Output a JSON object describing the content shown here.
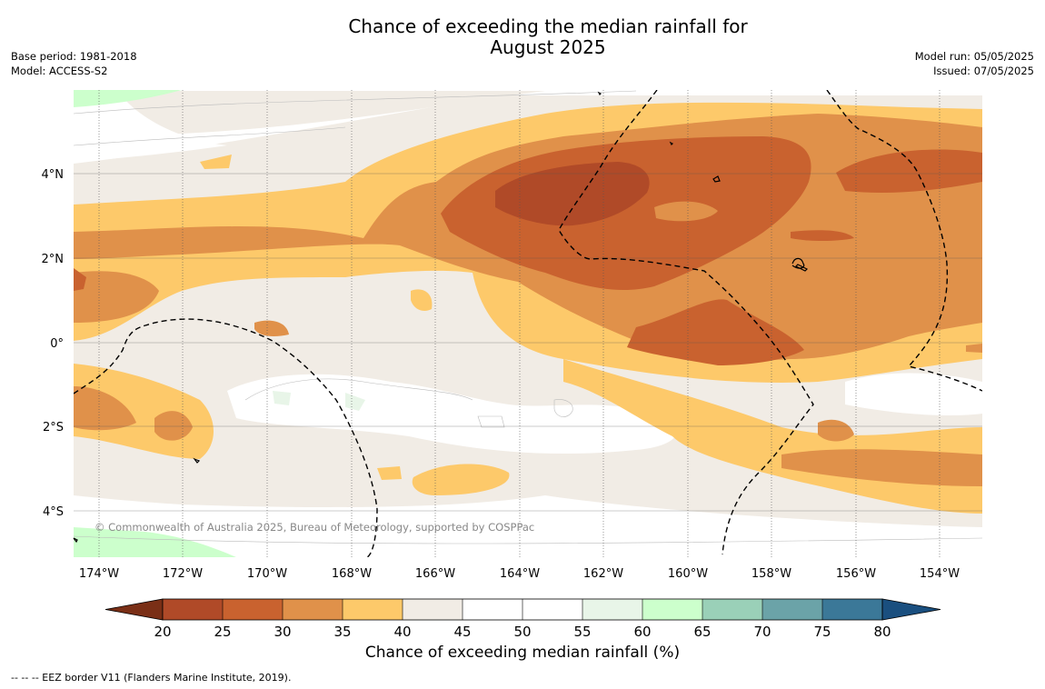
{
  "title_line1": "Chance of exceeding the median rainfall for",
  "title_line2": "August 2025",
  "meta_left": [
    "Base period: 1981-2018",
    "Model: ACCESS-S2"
  ],
  "meta_right": [
    "Model run: 05/05/2025",
    "Issued: 07/05/2025"
  ],
  "lon_labels": [
    "174°W",
    "172°W",
    "170°W",
    "168°W",
    "166°W",
    "164°W",
    "162°W",
    "160°W",
    "158°W",
    "156°W",
    "154°W"
  ],
  "lat_labels": [
    "4°N",
    "2°N",
    "0°",
    "2°S",
    "4°S"
  ],
  "copyright": "© Commonwealth of Australia 2025, Bureau of Meteorology, supported by COSPPac",
  "colorbar": {
    "ticks": [
      "20",
      "25",
      "30",
      "35",
      "40",
      "45",
      "50",
      "55",
      "60",
      "65",
      "70",
      "75",
      "80"
    ],
    "colors": [
      "#7a2f16",
      "#b04a28",
      "#c9622f",
      "#e0914a",
      "#fdc96a",
      "#f1ece5",
      "#ffffff",
      "#ffffff",
      "#e8f5e8",
      "#ccffcc",
      "#9ad0b8",
      "#6ba3a8",
      "#3b7898",
      "#1a4f7f"
    ],
    "label": "Chance of exceeding median rainfall (%)"
  },
  "legend_note": "-- -- -- EEZ border V11 (Flanders Marine Institute, 2019)."
}
